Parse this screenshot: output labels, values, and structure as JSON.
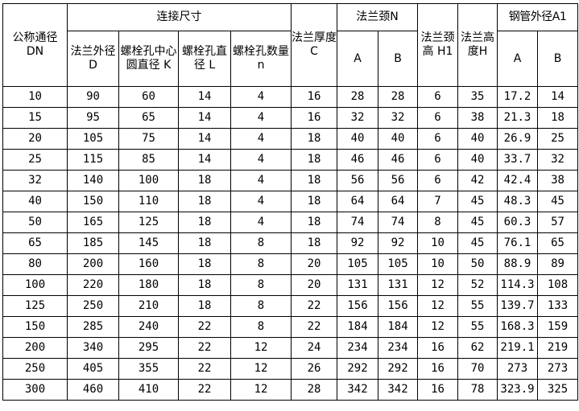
{
  "header": {
    "dn": "公称通径 DN",
    "connection": "连接尺寸",
    "D": "法兰外径 D",
    "K": "螺栓孔中心圆直径 K",
    "L": "螺栓孔直径 L",
    "n": "螺栓孔数量 n",
    "C": "法兰厚度 C",
    "N": "法兰颈N",
    "N_A": "A",
    "N_B": "B",
    "H1": "法兰颈高 H1",
    "H": "法兰高度H",
    "A1": "钢管外径A1",
    "A1_A": "A",
    "A1_B": "B"
  },
  "rows": [
    [
      "10",
      "90",
      "60",
      "14",
      "4",
      "16",
      "28",
      "28",
      "6",
      "35",
      "17.2",
      "14"
    ],
    [
      "15",
      "95",
      "65",
      "14",
      "4",
      "16",
      "32",
      "32",
      "6",
      "38",
      "21.3",
      "18"
    ],
    [
      "20",
      "105",
      "75",
      "14",
      "4",
      "18",
      "40",
      "40",
      "6",
      "40",
      "26.9",
      "25"
    ],
    [
      "25",
      "115",
      "85",
      "14",
      "4",
      "18",
      "46",
      "46",
      "6",
      "40",
      "33.7",
      "32"
    ],
    [
      "32",
      "140",
      "100",
      "18",
      "4",
      "18",
      "56",
      "56",
      "6",
      "42",
      "42.4",
      "38"
    ],
    [
      "40",
      "150",
      "110",
      "18",
      "4",
      "18",
      "64",
      "64",
      "7",
      "45",
      "48.3",
      "45"
    ],
    [
      "50",
      "165",
      "125",
      "18",
      "4",
      "18",
      "74",
      "74",
      "8",
      "45",
      "60.3",
      "57"
    ],
    [
      "65",
      "185",
      "145",
      "18",
      "8",
      "18",
      "92",
      "92",
      "10",
      "45",
      "76.1",
      "65"
    ],
    [
      "80",
      "200",
      "160",
      "18",
      "8",
      "20",
      "105",
      "105",
      "10",
      "50",
      "88.9",
      "89"
    ],
    [
      "100",
      "220",
      "180",
      "18",
      "8",
      "20",
      "131",
      "131",
      "12",
      "52",
      "114.3",
      "108"
    ],
    [
      "125",
      "250",
      "210",
      "18",
      "8",
      "22",
      "156",
      "156",
      "12",
      "55",
      "139.7",
      "133"
    ],
    [
      "150",
      "285",
      "240",
      "22",
      "8",
      "22",
      "184",
      "184",
      "12",
      "55",
      "168.3",
      "159"
    ],
    [
      "200",
      "340",
      "295",
      "22",
      "12",
      "24",
      "234",
      "234",
      "16",
      "62",
      "219.1",
      "219"
    ],
    [
      "250",
      "405",
      "355",
      "22",
      "12",
      "26",
      "292",
      "292",
      "16",
      "70",
      "273",
      "273"
    ],
    [
      "300",
      "460",
      "410",
      "22",
      "12",
      "28",
      "342",
      "342",
      "16",
      "78",
      "323.9",
      "325"
    ]
  ]
}
